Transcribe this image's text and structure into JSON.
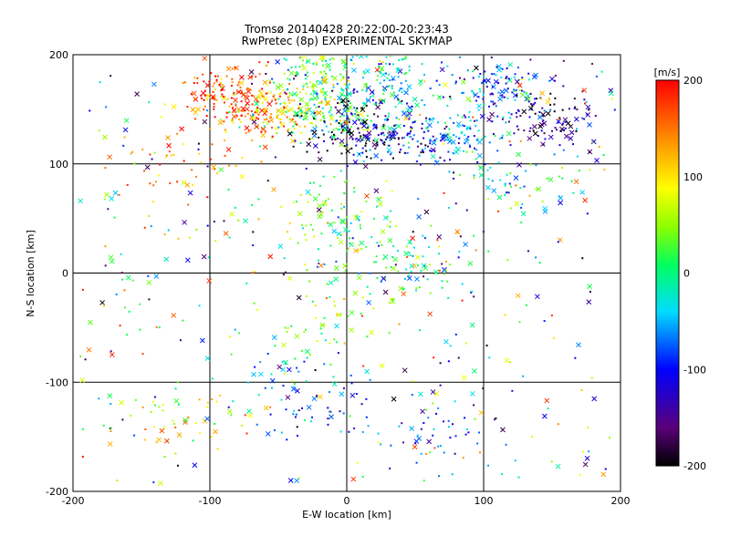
{
  "chart_data": {
    "type": "scatter",
    "title": "Tromsø 20140428 20:22:00-20:23:43",
    "subtitle": "RwPretec (8p) EXPERIMENTAL SKYMAP",
    "xlabel": "E-W location [km]",
    "ylabel": "N-S location [km]",
    "xlim": [
      -200,
      200
    ],
    "ylim": [
      -200,
      200
    ],
    "xticks": [
      "-200",
      "-100",
      "0",
      "100",
      "200"
    ],
    "yticks": [
      "-200",
      "-100",
      "0",
      "100",
      "200"
    ],
    "grid": true,
    "marker_styles": [
      "dot",
      "x"
    ],
    "colorbar": {
      "label": "[m/s]",
      "range": [
        -200,
        200
      ],
      "ticks": [
        "-200",
        "-100",
        "0",
        "100",
        "200"
      ],
      "colormap": "rainbow (black → purple → blue → cyan → green → yellow → orange → red)"
    },
    "clusters": [
      {
        "x": -35,
        "y": 150,
        "velocity": 60
      },
      {
        "x": -5,
        "y": 140,
        "velocity": 0
      },
      {
        "x": 5,
        "y": 130,
        "velocity": -180
      },
      {
        "x": 40,
        "y": 125,
        "velocity": -110
      },
      {
        "x": 80,
        "y": 125,
        "velocity": -60
      },
      {
        "x": 110,
        "y": 170,
        "velocity": -90
      },
      {
        "x": 150,
        "y": 140,
        "velocity": -150
      },
      {
        "x": -85,
        "y": 165,
        "velocity": 180
      },
      {
        "x": -65,
        "y": 150,
        "velocity": 150
      },
      {
        "x": -20,
        "y": 185,
        "velocity": 20
      },
      {
        "x": 30,
        "y": 175,
        "velocity": -30
      },
      {
        "x": -25,
        "y": 60,
        "velocity": 40
      },
      {
        "x": 20,
        "y": 15,
        "velocity": 20
      },
      {
        "x": 50,
        "y": 10,
        "velocity": 0
      },
      {
        "x": 0,
        "y": 40,
        "velocity": 30
      },
      {
        "x": -15,
        "y": -40,
        "velocity": 50
      },
      {
        "x": -50,
        "y": -90,
        "velocity": -30
      },
      {
        "x": -20,
        "y": -130,
        "velocity": -100
      },
      {
        "x": 70,
        "y": -140,
        "velocity": -80
      },
      {
        "x": -120,
        "y": -130,
        "velocity": 80
      },
      {
        "x": 130,
        "y": 80,
        "velocity": -20
      },
      {
        "x": -130,
        "y": 100,
        "velocity": 140
      }
    ]
  }
}
